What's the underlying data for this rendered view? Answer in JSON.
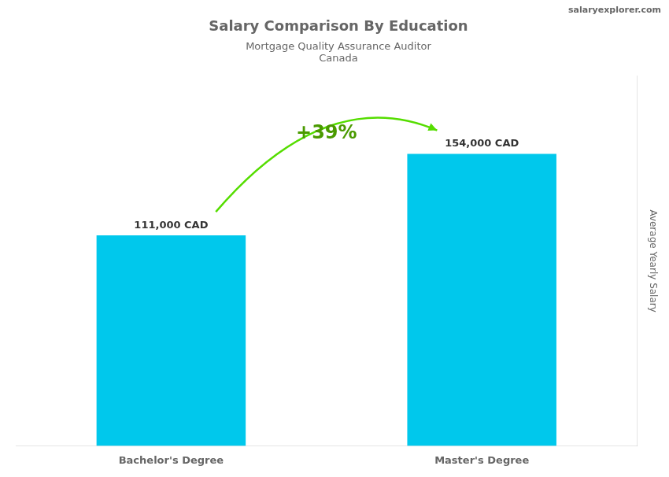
{
  "chart_data": {
    "type": "bar",
    "title": "Salary Comparison By Education",
    "subtitle": "Mortgage Quality Assurance Auditor",
    "y_label": "Average Yearly Salary",
    "annotations": [
      "Canada",
      "salaryexplorer.com",
      "+39%"
    ],
    "categories": [
      "Bachelor's Degree",
      "Master's Degree"
    ],
    "values": [
      111000,
      154000
    ],
    "value_labels": [
      "111,000 CAD",
      "154,000 CAD"
    ],
    "data_labels": true,
    "color": "#00C8EC",
    "ylim": [
      0,
      195000
    ],
    "tick_labels": "x",
    "grid": false
  }
}
